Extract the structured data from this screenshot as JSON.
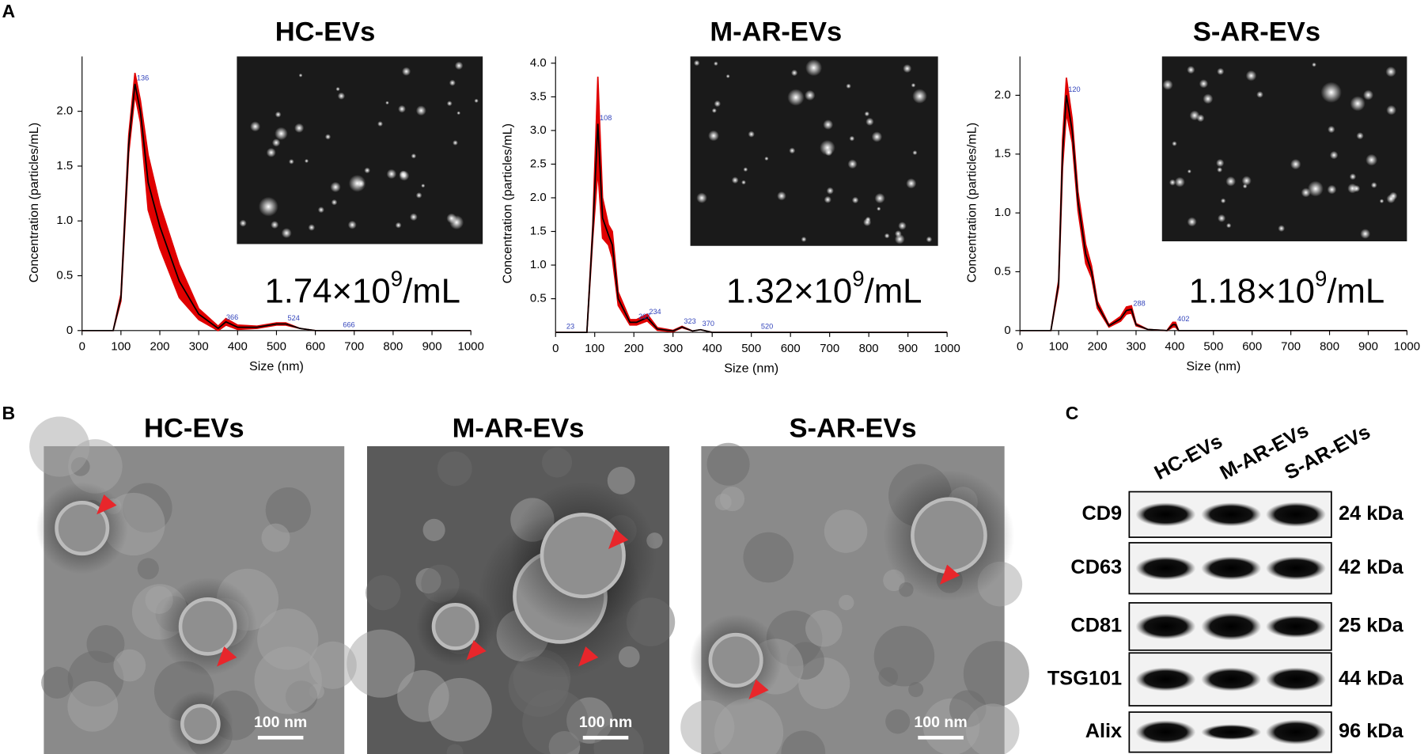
{
  "panel_labels": [
    "A",
    "B",
    "C"
  ],
  "chart_data": [
    {
      "type": "line",
      "title": "HC-EVs",
      "xlabel": "Size (nm)",
      "ylabel": "Concentration (particles/mL)",
      "annotation": [
        "1.74×10",
        "9",
        "/mL"
      ],
      "x": [
        0,
        80,
        100,
        120,
        136,
        150,
        170,
        200,
        250,
        300,
        350,
        370,
        400,
        450,
        500,
        524,
        560,
        600,
        700,
        800,
        900,
        1000
      ],
      "series": [
        {
          "color": "#000000",
          "band_color": "#e00000",
          "values": [
            0,
            0,
            0.3,
            1.7,
            2.25,
            2.0,
            1.35,
            0.95,
            0.45,
            0.15,
            0.02,
            0.08,
            0.03,
            0.03,
            0.06,
            0.06,
            0.02,
            0,
            0,
            0,
            0,
            0
          ],
          "errors": [
            0,
            0,
            0.03,
            0.08,
            0.1,
            0.1,
            0.25,
            0.2,
            0.15,
            0.05,
            0.02,
            0.03,
            0.02,
            0.01,
            0.01,
            0.01,
            0,
            0,
            0,
            0,
            0,
            0
          ]
        }
      ],
      "peak_labels": [
        136,
        366,
        524,
        666
      ],
      "xlim": [
        0,
        1000
      ],
      "xticks": [
        0,
        100,
        200,
        300,
        400,
        500,
        600,
        700,
        800,
        900,
        1000
      ],
      "ylim": [
        0,
        2.5
      ],
      "yticks": [
        0,
        0.5,
        {
          "value": 1,
          "label": "1.0"
        },
        1.5,
        {
          "value": 2,
          "label": "2.0"
        }
      ]
    },
    {
      "type": "line",
      "title": "M-AR-EVs",
      "xlabel": "Size (nm)",
      "ylabel": "Concentration (particles/mL)",
      "annotation": [
        "1.32×10",
        "9",
        "/mL"
      ],
      "x": [
        0,
        23,
        80,
        95,
        108,
        120,
        135,
        145,
        160,
        190,
        207,
        234,
        260,
        300,
        323,
        350,
        370,
        400,
        520,
        600,
        1000
      ],
      "series": [
        {
          "color": "#000000",
          "band_color": "#e00000",
          "values": [
            0,
            0,
            0,
            1.5,
            3.1,
            1.7,
            1.45,
            1.3,
            0.5,
            0.15,
            0.15,
            0.22,
            0.05,
            0.02,
            0.08,
            0.02,
            0.04,
            0,
            0,
            0,
            0
          ],
          "errors": [
            0,
            0,
            0,
            0.1,
            0.7,
            0.3,
            0.15,
            0.2,
            0.1,
            0.04,
            0.04,
            0.05,
            0.02,
            0.01,
            0.01,
            0,
            0,
            0,
            0,
            0,
            0
          ]
        }
      ],
      "peak_labels": [
        23,
        108,
        207,
        234,
        323,
        370,
        520
      ],
      "xlim": [
        0,
        1000
      ],
      "xticks": [
        0,
        100,
        200,
        300,
        400,
        500,
        600,
        700,
        800,
        900,
        1000
      ],
      "ylim": [
        0,
        4.1
      ],
      "yticks": [
        0.5,
        {
          "value": 1,
          "label": "1.0"
        },
        1.5,
        {
          "value": 2,
          "label": "2.0"
        },
        2.5,
        {
          "value": 3,
          "label": "3.0"
        },
        3.5,
        {
          "value": 4,
          "label": "4.0"
        }
      ]
    },
    {
      "type": "line",
      "title": "S-AR-EVs",
      "xlabel": "Size (nm)",
      "ylabel": "Concentration (particles/mL)",
      "annotation": [
        "1.18×10",
        "9",
        "/mL"
      ],
      "x": [
        0,
        80,
        100,
        110,
        120,
        135,
        150,
        170,
        185,
        200,
        230,
        260,
        275,
        288,
        300,
        330,
        380,
        395,
        402,
        410,
        450,
        1000
      ],
      "series": [
        {
          "color": "#000000",
          "band_color": "#e00000",
          "values": [
            0,
            0,
            0.4,
            1.5,
            2.0,
            1.7,
            1.1,
            0.65,
            0.5,
            0.22,
            0.04,
            0.1,
            0.17,
            0.18,
            0.05,
            0.01,
            0,
            0.05,
            0.05,
            0,
            0,
            0
          ],
          "errors": [
            0,
            0,
            0.03,
            0.12,
            0.15,
            0.1,
            0.08,
            0.08,
            0.05,
            0.03,
            0.01,
            0.02,
            0.03,
            0.03,
            0.01,
            0,
            0,
            0.02,
            0.02,
            0,
            0,
            0
          ]
        }
      ],
      "peak_labels": [
        120,
        288,
        402
      ],
      "xlim": [
        0,
        1000
      ],
      "xticks": [
        0,
        100,
        200,
        300,
        400,
        500,
        600,
        700,
        800,
        900,
        1000
      ],
      "ylim": [
        0,
        2.33
      ],
      "yticks": [
        0,
        0.5,
        {
          "value": 1,
          "label": "1.0"
        },
        1.5,
        {
          "value": 2,
          "label": "2.0"
        }
      ]
    }
  ],
  "tem": {
    "titles": [
      "HC-EVs",
      "M-AR-EVs",
      "S-AR-EVs"
    ],
    "scale_bar": "100 nm"
  },
  "blot": {
    "columns": [
      "HC-EVs",
      "M-AR-EVs",
      "S-AR-EVs"
    ],
    "rows": [
      {
        "protein": "CD9",
        "size": "24 kDa"
      },
      {
        "protein": "CD63",
        "size": "42 kDa"
      },
      {
        "protein": "CD81",
        "size": "25 kDa"
      },
      {
        "protein": "TSG101",
        "size": "44 kDa"
      },
      {
        "protein": "Alix",
        "size": "96 kDa"
      }
    ]
  }
}
